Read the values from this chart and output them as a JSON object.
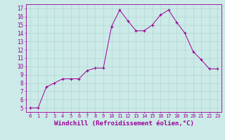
{
  "x": [
    0,
    1,
    2,
    3,
    4,
    5,
    6,
    7,
    8,
    9,
    10,
    11,
    12,
    13,
    14,
    15,
    16,
    17,
    18,
    19,
    20,
    21,
    22,
    23
  ],
  "y": [
    5.0,
    5.0,
    7.5,
    8.0,
    8.5,
    8.5,
    8.5,
    9.5,
    9.8,
    9.8,
    14.8,
    16.8,
    15.5,
    14.3,
    14.3,
    15.0,
    16.2,
    16.8,
    15.3,
    14.0,
    11.8,
    10.8,
    9.7,
    9.7
  ],
  "line_color": "#990099",
  "marker": "+",
  "marker_size": 3,
  "marker_linewidth": 0.8,
  "line_width": 0.7,
  "xlabel": "Windchill (Refroidissement éolien,°C)",
  "xlabel_fontsize": 6.5,
  "ylabel_ticks": [
    5,
    6,
    7,
    8,
    9,
    10,
    11,
    12,
    13,
    14,
    15,
    16,
    17
  ],
  "xlim": [
    -0.5,
    23.5
  ],
  "ylim": [
    4.5,
    17.5
  ],
  "bg_color": "#cceae7",
  "grid_color": "#aad4d0",
  "tick_color": "#990099",
  "tick_label_color": "#990099",
  "spine_color": "#990099",
  "tick_fontsize": 5.0,
  "ytick_fontsize": 5.5
}
